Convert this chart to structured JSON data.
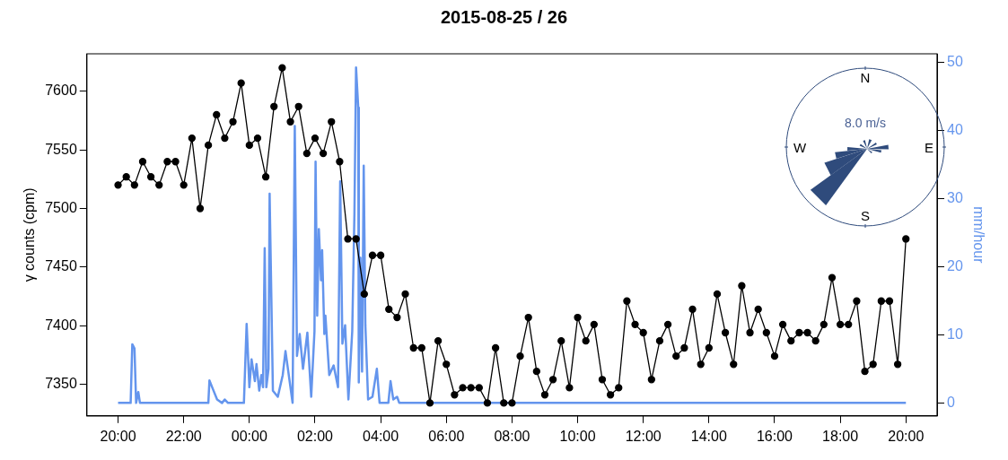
{
  "chart_data": {
    "type": "line",
    "title": "2015-08-25 / 26",
    "ylabel": "γ counts (cpm)",
    "y2label": "mm/hour",
    "xlim": [
      "2015-08-25T19:03",
      "2015-08-26T20:57"
    ],
    "xticks": [
      {
        "value": "2015-08-25T20:00",
        "label": "20:00"
      },
      {
        "value": "2015-08-25T22:00",
        "label": "22:00"
      },
      {
        "value": "2015-08-26T00:00",
        "label": "00:00"
      },
      {
        "value": "2015-08-26T02:00",
        "label": "02:00"
      },
      {
        "value": "2015-08-26T04:00",
        "label": "04:00"
      },
      {
        "value": "2015-08-26T06:00",
        "label": "06:00"
      },
      {
        "value": "2015-08-26T08:00",
        "label": "08:00"
      },
      {
        "value": "2015-08-26T10:00",
        "label": "10:00"
      },
      {
        "value": "2015-08-26T12:00",
        "label": "12:00"
      },
      {
        "value": "2015-08-26T14:00",
        "label": "14:00"
      },
      {
        "value": "2015-08-26T16:00",
        "label": "16:00"
      },
      {
        "value": "2015-08-26T18:00",
        "label": "18:00"
      },
      {
        "value": "2015-08-26T20:00",
        "label": "20:00"
      }
    ],
    "ylim": [
      7323,
      7632
    ],
    "yticks": [
      7350,
      7400,
      7450,
      7500,
      7550,
      7600
    ],
    "y2lim": [
      -1.9,
      51.2
    ],
    "y2ticks": [
      0,
      10,
      20,
      30,
      40,
      50
    ],
    "grid": false,
    "legend": false,
    "marker": "circle",
    "line_style": "solid",
    "annotations": [
      "N",
      "E",
      "S",
      "W",
      "8.0 m/s"
    ],
    "series": [
      {
        "color": "#000000",
        "x": [
          "2015-08-25T20:00",
          "2015-08-25T20:15",
          "2015-08-25T20:30",
          "2015-08-25T20:45",
          "2015-08-25T21:00",
          "2015-08-25T21:15",
          "2015-08-25T21:30",
          "2015-08-25T21:45",
          "2015-08-25T22:00",
          "2015-08-25T22:15",
          "2015-08-25T22:30",
          "2015-08-25T22:45",
          "2015-08-25T23:00",
          "2015-08-25T23:15",
          "2015-08-25T23:30",
          "2015-08-25T23:45",
          "2015-08-26T00:00",
          "2015-08-26T00:15",
          "2015-08-26T00:30",
          "2015-08-26T00:45",
          "2015-08-26T01:00",
          "2015-08-26T01:15",
          "2015-08-26T01:30",
          "2015-08-26T01:45",
          "2015-08-26T02:00",
          "2015-08-26T02:15",
          "2015-08-26T02:30",
          "2015-08-26T02:45",
          "2015-08-26T03:00",
          "2015-08-26T03:15",
          "2015-08-26T03:30",
          "2015-08-26T03:45",
          "2015-08-26T04:00",
          "2015-08-26T04:15",
          "2015-08-26T04:30",
          "2015-08-26T04:45",
          "2015-08-26T05:00",
          "2015-08-26T05:15",
          "2015-08-26T05:30",
          "2015-08-26T05:45",
          "2015-08-26T06:00",
          "2015-08-26T06:15",
          "2015-08-26T06:30",
          "2015-08-26T06:45",
          "2015-08-26T07:00",
          "2015-08-26T07:15",
          "2015-08-26T07:30",
          "2015-08-26T07:45",
          "2015-08-26T08:00",
          "2015-08-26T08:15",
          "2015-08-26T08:30",
          "2015-08-26T08:45",
          "2015-08-26T09:00",
          "2015-08-26T09:15",
          "2015-08-26T09:30",
          "2015-08-26T09:45",
          "2015-08-26T10:00",
          "2015-08-26T10:15",
          "2015-08-26T10:30",
          "2015-08-26T10:45",
          "2015-08-26T11:00",
          "2015-08-26T11:15",
          "2015-08-26T11:30",
          "2015-08-26T11:45",
          "2015-08-26T12:00",
          "2015-08-26T12:15",
          "2015-08-26T12:30",
          "2015-08-26T12:45",
          "2015-08-26T13:00",
          "2015-08-26T13:15",
          "2015-08-26T13:30",
          "2015-08-26T13:45",
          "2015-08-26T14:00",
          "2015-08-26T14:15",
          "2015-08-26T14:30",
          "2015-08-26T14:45",
          "2015-08-26T15:00",
          "2015-08-26T15:15",
          "2015-08-26T15:30",
          "2015-08-26T15:45",
          "2015-08-26T16:00",
          "2015-08-26T16:15",
          "2015-08-26T16:30",
          "2015-08-26T16:45",
          "2015-08-26T17:00",
          "2015-08-26T17:15",
          "2015-08-26T17:30",
          "2015-08-26T17:45",
          "2015-08-26T18:00",
          "2015-08-26T18:15",
          "2015-08-26T18:30",
          "2015-08-26T18:45",
          "2015-08-26T19:00",
          "2015-08-26T19:15",
          "2015-08-26T19:30",
          "2015-08-26T19:45",
          "2015-08-26T20:00"
        ],
        "values": [
          7520,
          7527,
          7520,
          7540,
          7527,
          7520,
          7540,
          7540,
          7520,
          7560,
          7500,
          7554,
          7580,
          7560,
          7574,
          7607,
          7554,
          7560,
          7527,
          7587,
          7620,
          7574,
          7587,
          7547,
          7560,
          7547,
          7574,
          7540,
          7474,
          7474,
          7427,
          7460,
          7460,
          7414,
          7407,
          7427,
          7381,
          7381,
          7334,
          7387,
          7367,
          7341,
          7347,
          7347,
          7347,
          7334,
          7381,
          7334,
          7334,
          7374,
          7407,
          7361,
          7341,
          7354,
          7387,
          7347,
          7407,
          7387,
          7401,
          7354,
          7341,
          7347,
          7421,
          7401,
          7394,
          7354,
          7387,
          7401,
          7374,
          7381,
          7414,
          7367,
          7381,
          7427,
          7394,
          7367,
          7434,
          7394,
          7414,
          7394,
          7374,
          7401,
          7387,
          7394,
          7394,
          7387,
          7401,
          7441,
          7401,
          7401,
          7421,
          7361,
          7367,
          7421,
          7421,
          7367,
          7474
        ]
      },
      {
        "color": "#6495ed",
        "marker": "none",
        "axis": "y2",
        "x": [
          "2015-08-25T20:00",
          "2015-08-25T20:23",
          "2015-08-25T20:26",
          "2015-08-25T20:30",
          "2015-08-25T20:33",
          "2015-08-25T20:37",
          "2015-08-25T20:40",
          "2015-08-25T22:45",
          "2015-08-25T22:47",
          "2015-08-25T22:52",
          "2015-08-25T23:01",
          "2015-08-25T23:10",
          "2015-08-25T23:15",
          "2015-08-25T23:21",
          "2015-08-25T23:50",
          "2015-08-25T23:55",
          "2015-08-26T00:00",
          "2015-08-26T00:04",
          "2015-08-26T00:10",
          "2015-08-26T00:13",
          "2015-08-26T00:18",
          "2015-08-26T00:22",
          "2015-08-26T00:25",
          "2015-08-26T00:28",
          "2015-08-26T00:31",
          "2015-08-26T00:35",
          "2015-08-26T00:37",
          "2015-08-26T00:43",
          "2015-08-26T00:52",
          "2015-08-26T01:01",
          "2015-08-26T01:06",
          "2015-08-26T01:12",
          "2015-08-26T01:19",
          "2015-08-26T01:23",
          "2015-08-26T01:27",
          "2015-08-26T01:32",
          "2015-08-26T01:38",
          "2015-08-26T01:46",
          "2015-08-26T01:53",
          "2015-08-26T01:59",
          "2015-08-26T02:01",
          "2015-08-26T02:04",
          "2015-08-26T02:07",
          "2015-08-26T02:11",
          "2015-08-26T02:13",
          "2015-08-26T02:17",
          "2015-08-26T02:19",
          "2015-08-26T02:26",
          "2015-08-26T02:34",
          "2015-08-26T02:42",
          "2015-08-26T02:46",
          "2015-08-26T02:50",
          "2015-08-26T02:55",
          "2015-08-26T03:01",
          "2015-08-26T03:08",
          "2015-08-26T03:12",
          "2015-08-26T03:15",
          "2015-08-26T03:19",
          "2015-08-26T03:20",
          "2015-08-26T03:23",
          "2015-08-26T03:26",
          "2015-08-26T03:29",
          "2015-08-26T03:32",
          "2015-08-26T03:37",
          "2015-08-26T03:45",
          "2015-08-26T03:53",
          "2015-08-26T03:58",
          "2015-08-26T04:14",
          "2015-08-26T04:18",
          "2015-08-26T04:23",
          "2015-08-26T04:30",
          "2015-08-26T04:34",
          "2015-08-26T20:00"
        ],
        "values": [
          0,
          0,
          8.6,
          8,
          0,
          1.6,
          0,
          0,
          3.3,
          2.3,
          0.5,
          0,
          0.5,
          0,
          0,
          11.6,
          2.3,
          6.4,
          3.2,
          5.7,
          1.8,
          4.1,
          2.3,
          22.7,
          2.3,
          5,
          30.7,
          1.8,
          0.9,
          4.1,
          7.6,
          4.1,
          0,
          40.6,
          6.9,
          10.1,
          5,
          10.3,
          0.9,
          10.5,
          35.4,
          12.8,
          25.5,
          18,
          22.4,
          10.1,
          12.8,
          4.1,
          5.5,
          2.3,
          32.5,
          8.7,
          11.4,
          0.5,
          10.5,
          27.7,
          49.2,
          43.3,
          3,
          21.3,
          4.6,
          34.8,
          11.4,
          0.5,
          0.9,
          5,
          0,
          0,
          3.2,
          0.5,
          0.9,
          0,
          0
        ]
      }
    ]
  }
}
